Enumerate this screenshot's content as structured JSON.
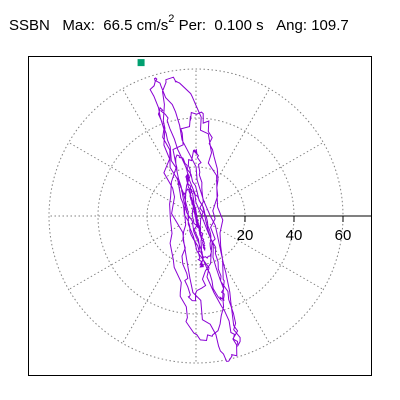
{
  "header": {
    "station": "SSBN",
    "max_label": "Max:",
    "max_value": "66.5 cm/s",
    "max_exp": "2",
    "per_label": "Per:",
    "per_value": "0.100 s",
    "ang_label": "Ang:",
    "ang_value": "109.7"
  },
  "chart_data": {
    "type": "polar-hodogram",
    "title": "SSBN   Max:  66.5 cm/s² Per:  0.100 s  Ang: 109.7",
    "radial_ticks": [
      20,
      40,
      60
    ],
    "radial_tick_labels": [
      "20",
      "40",
      "60"
    ],
    "grid": true,
    "grid_style": "dotted",
    "grid_rings": [
      20,
      40,
      60
    ],
    "grid_spokes_deg": [
      0,
      30,
      60,
      90,
      120,
      150,
      180,
      210,
      240,
      270,
      300,
      330
    ],
    "max_value": 66.5,
    "max_unit": "cm/s²",
    "period_s": 0.1,
    "max_angle_deg": 109.7,
    "colors": {
      "trace": "#8a00d4",
      "max_marker": "#00a070",
      "grid": "#808080",
      "axis": "#000000"
    }
  }
}
